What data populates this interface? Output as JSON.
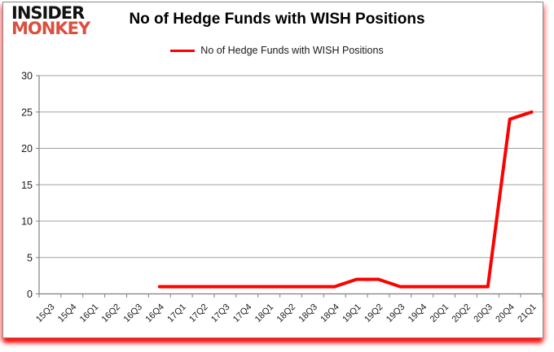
{
  "logo": {
    "line1": "INSIDER",
    "line2": "MONKEY"
  },
  "header": {
    "title": "No of Hedge Funds with WISH Positions"
  },
  "legend": {
    "label": "No of Hedge Funds with WISH Positions"
  },
  "colors": {
    "line": "#fe0000",
    "grid": "#a0a0a0",
    "axis": "#808080",
    "tick_text": "#1a1a1a",
    "logo_red": "#d9503f",
    "frame_glow": "#ff0000"
  },
  "chart_data": {
    "type": "line",
    "title": "No of Hedge Funds with WISH Positions",
    "xlabel": "",
    "ylabel": "",
    "categories": [
      "15Q3",
      "15Q4",
      "16Q1",
      "16Q2",
      "16Q3",
      "16Q4",
      "17Q1",
      "17Q2",
      "17Q3",
      "17Q4",
      "18Q1",
      "18Q2",
      "18Q3",
      "18Q4",
      "19Q1",
      "19Q2",
      "19Q3",
      "19Q4",
      "20Q1",
      "20Q2",
      "20Q3",
      "20Q4",
      "21Q1"
    ],
    "series": [
      {
        "name": "No of Hedge Funds with WISH Positions",
        "color": "#fe0000",
        "values": [
          null,
          null,
          null,
          null,
          null,
          1,
          1,
          1,
          1,
          1,
          1,
          1,
          1,
          1,
          2,
          2,
          1,
          1,
          1,
          1,
          1,
          24,
          25
        ]
      }
    ],
    "ylim": [
      0,
      30
    ],
    "yticks": [
      0,
      5,
      10,
      15,
      20,
      25,
      30
    ],
    "grid": true,
    "legend_position": "top-center"
  }
}
